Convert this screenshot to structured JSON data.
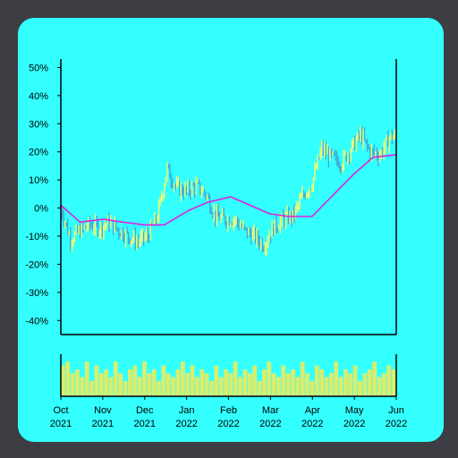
{
  "colors": {
    "background": "#3d3e44",
    "panel": "#33ffff",
    "candle_up": "#ffff66",
    "candle_down": "#3fa9d6",
    "moving_average": "#dd22dd",
    "volume": "#d8ee6e",
    "axis": "#000000"
  },
  "chart_data": [
    {
      "type": "line",
      "title": "",
      "xlabel": "",
      "ylabel": "",
      "ylim": [
        -45,
        53
      ],
      "y_ticks": [
        "50%",
        "40%",
        "30%",
        "20%",
        "10%",
        "0%",
        "-10%",
        "-20%",
        "-30%",
        "-40%"
      ],
      "y_tick_values": [
        50,
        40,
        30,
        20,
        10,
        0,
        -10,
        -20,
        -30,
        -40
      ],
      "grid": false,
      "legend": "none",
      "series": [
        {
          "kind": "candles",
          "x": [
            "2021-10-01",
            "2021-10-08",
            "2021-10-15",
            "2021-10-22",
            "2021-10-29",
            "2021-11-05",
            "2021-11-12",
            "2021-11-19",
            "2021-11-26",
            "2021-12-03",
            "2021-12-10",
            "2021-12-17",
            "2021-12-24",
            "2021-12-31",
            "2022-01-07",
            "2022-01-14",
            "2022-01-21",
            "2022-01-28",
            "2022-02-04",
            "2022-02-11",
            "2022-02-18",
            "2022-02-25",
            "2022-03-04",
            "2022-03-11",
            "2022-03-18",
            "2022-03-25",
            "2022-04-01",
            "2022-04-08",
            "2022-04-15",
            "2022-04-22",
            "2022-04-29",
            "2022-05-06",
            "2022-05-13",
            "2022-05-20",
            "2022-05-27"
          ],
          "values": [
            0,
            -11,
            -8,
            -6,
            -7,
            -5,
            -8,
            -10,
            -12,
            -10,
            -3,
            14,
            7,
            6,
            8,
            5,
            -3,
            -4,
            -4,
            -8,
            -10,
            -13,
            -7,
            -4,
            -3,
            4,
            9,
            21,
            18,
            16,
            21,
            26,
            20,
            19,
            25
          ]
        },
        {
          "kind": "moving-average",
          "x": [
            "2021-10-01",
            "2021-10-15",
            "2021-11-01",
            "2021-11-15",
            "2021-12-01",
            "2021-12-15",
            "2022-01-01",
            "2022-01-15",
            "2022-02-01",
            "2022-02-15",
            "2022-03-01",
            "2022-03-15",
            "2022-04-01",
            "2022-04-15",
            "2022-05-01",
            "2022-05-15",
            "2022-06-01"
          ],
          "values": [
            1,
            -5,
            -4,
            -5,
            -6,
            -6,
            -1,
            2,
            4,
            1,
            -2,
            -3,
            -3,
            4,
            12,
            18,
            19
          ]
        }
      ]
    },
    {
      "type": "bar",
      "title": "",
      "xlabel": "",
      "ylabel": "",
      "description_of_marks": "volume",
      "x_ticks": [
        {
          "month": "Oct",
          "year": "2021"
        },
        {
          "month": "Nov",
          "year": "2021"
        },
        {
          "month": "Dec",
          "year": "2021"
        },
        {
          "month": "Jan",
          "year": "2022"
        },
        {
          "month": "Feb",
          "year": "2022"
        },
        {
          "month": "Mar",
          "year": "2022"
        },
        {
          "month": "Apr",
          "year": "2022"
        },
        {
          "month": "May",
          "year": "2022"
        },
        {
          "month": "Jun",
          "year": "2022"
        }
      ],
      "values": [
        0.8,
        0.9,
        0.6,
        0.7,
        0.5,
        0.9,
        0.4,
        0.8,
        0.6,
        0.7,
        0.5,
        0.9,
        0.6,
        0.4,
        0.7,
        0.8,
        0.5,
        0.9,
        0.6,
        0.7,
        0.4,
        0.8,
        0.6,
        0.5,
        0.7,
        0.9,
        0.6,
        0.8,
        0.5,
        0.7,
        0.6,
        0.4,
        0.8,
        0.5,
        0.7,
        0.6,
        0.9,
        0.5,
        0.7,
        0.6,
        0.8,
        0.4,
        0.7,
        0.9,
        0.6,
        0.5,
        0.8,
        0.6,
        0.7,
        0.5,
        0.9,
        0.6,
        0.4,
        0.8,
        0.7,
        0.5,
        0.6,
        0.9,
        0.5,
        0.7,
        0.6,
        0.8,
        0.4,
        0.6,
        0.7,
        0.9,
        0.5,
        0.6,
        0.8,
        0.7
      ]
    }
  ]
}
